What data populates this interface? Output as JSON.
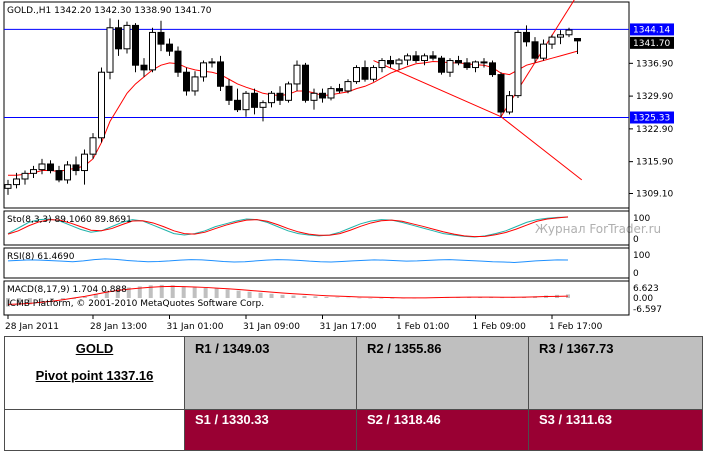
{
  "chart_data": {
    "type": "candlestick",
    "header": "GOLD.,H1  1342.20 1342.30 1338.90 1341.70",
    "symbol": "GOLD.",
    "timeframe": "H1",
    "ohlc_current": {
      "open": 1342.2,
      "high": 1342.3,
      "low": 1338.9,
      "close": 1341.7
    },
    "price_axis_ticks": [
      "1336.90",
      "1329.90",
      "1322.90",
      "1315.90",
      "1309.10"
    ],
    "horizontal_levels": [
      {
        "value": 1344.14,
        "label": "1344.14",
        "color": "#0000ff"
      },
      {
        "value": 1325.33,
        "label": "1325.33",
        "color": "#0000ff"
      }
    ],
    "current_price_label": "1341.70",
    "ylim": [
      1306,
      1350
    ],
    "candles": [
      {
        "o": 1310.2,
        "h": 1312.0,
        "l": 1308.8,
        "c": 1311.0
      },
      {
        "o": 1311.0,
        "h": 1313.5,
        "l": 1310.2,
        "c": 1312.2
      },
      {
        "o": 1312.2,
        "h": 1314.0,
        "l": 1311.0,
        "c": 1313.4
      },
      {
        "o": 1313.4,
        "h": 1315.0,
        "l": 1312.4,
        "c": 1314.2
      },
      {
        "o": 1314.2,
        "h": 1316.5,
        "l": 1313.2,
        "c": 1315.4
      },
      {
        "o": 1315.4,
        "h": 1316.2,
        "l": 1313.4,
        "c": 1314.0
      },
      {
        "o": 1314.0,
        "h": 1315.0,
        "l": 1311.5,
        "c": 1312.0
      },
      {
        "o": 1312.0,
        "h": 1316.0,
        "l": 1311.2,
        "c": 1315.2
      },
      {
        "o": 1315.2,
        "h": 1317.0,
        "l": 1313.0,
        "c": 1314.0
      },
      {
        "o": 1314.0,
        "h": 1318.5,
        "l": 1311.0,
        "c": 1317.5
      },
      {
        "o": 1317.5,
        "h": 1322.0,
        "l": 1316.5,
        "c": 1321.0
      },
      {
        "o": 1321.0,
        "h": 1336.0,
        "l": 1320.0,
        "c": 1335.0
      },
      {
        "o": 1335.0,
        "h": 1346.5,
        "l": 1333.5,
        "c": 1344.5
      },
      {
        "o": 1344.5,
        "h": 1346.2,
        "l": 1338.5,
        "c": 1340.0
      },
      {
        "o": 1340.0,
        "h": 1345.8,
        "l": 1339.0,
        "c": 1345.0
      },
      {
        "o": 1345.0,
        "h": 1345.5,
        "l": 1335.0,
        "c": 1336.5
      },
      {
        "o": 1336.5,
        "h": 1338.0,
        "l": 1334.0,
        "c": 1335.5
      },
      {
        "o": 1335.5,
        "h": 1344.5,
        "l": 1335.0,
        "c": 1343.5
      },
      {
        "o": 1343.5,
        "h": 1346.0,
        "l": 1339.5,
        "c": 1341.0
      },
      {
        "o": 1341.0,
        "h": 1342.2,
        "l": 1338.5,
        "c": 1339.5
      },
      {
        "o": 1339.5,
        "h": 1340.5,
        "l": 1334.0,
        "c": 1335.0
      },
      {
        "o": 1335.0,
        "h": 1336.0,
        "l": 1330.0,
        "c": 1331.0
      },
      {
        "o": 1331.0,
        "h": 1335.2,
        "l": 1330.0,
        "c": 1334.0
      },
      {
        "o": 1334.0,
        "h": 1337.5,
        "l": 1333.0,
        "c": 1337.0
      },
      {
        "o": 1337.0,
        "h": 1338.0,
        "l": 1336.0,
        "c": 1337.2
      },
      {
        "o": 1337.2,
        "h": 1338.5,
        "l": 1331.0,
        "c": 1332.0
      },
      {
        "o": 1332.0,
        "h": 1333.5,
        "l": 1328.0,
        "c": 1329.0
      },
      {
        "o": 1329.0,
        "h": 1331.5,
        "l": 1326.5,
        "c": 1327.0
      },
      {
        "o": 1327.0,
        "h": 1331.0,
        "l": 1325.5,
        "c": 1330.5
      },
      {
        "o": 1330.5,
        "h": 1331.5,
        "l": 1326.0,
        "c": 1327.5
      },
      {
        "o": 1327.5,
        "h": 1329.0,
        "l": 1324.5,
        "c": 1328.5
      },
      {
        "o": 1328.5,
        "h": 1331.0,
        "l": 1327.5,
        "c": 1330.5
      },
      {
        "o": 1330.5,
        "h": 1332.0,
        "l": 1328.0,
        "c": 1329.0
      },
      {
        "o": 1329.0,
        "h": 1333.0,
        "l": 1328.5,
        "c": 1332.5
      },
      {
        "o": 1332.5,
        "h": 1337.5,
        "l": 1331.0,
        "c": 1336.5
      },
      {
        "o": 1336.5,
        "h": 1337.0,
        "l": 1328.5,
        "c": 1329.0
      },
      {
        "o": 1329.0,
        "h": 1331.5,
        "l": 1327.0,
        "c": 1330.5
      },
      {
        "o": 1330.5,
        "h": 1331.5,
        "l": 1328.5,
        "c": 1329.5
      },
      {
        "o": 1329.5,
        "h": 1332.0,
        "l": 1329.0,
        "c": 1331.5
      },
      {
        "o": 1331.5,
        "h": 1332.5,
        "l": 1330.5,
        "c": 1331.0
      },
      {
        "o": 1331.0,
        "h": 1333.5,
        "l": 1330.5,
        "c": 1333.0
      },
      {
        "o": 1333.0,
        "h": 1336.5,
        "l": 1332.5,
        "c": 1336.0
      },
      {
        "o": 1336.0,
        "h": 1337.5,
        "l": 1333.0,
        "c": 1333.5
      },
      {
        "o": 1333.5,
        "h": 1336.5,
        "l": 1333.0,
        "c": 1336.0
      },
      {
        "o": 1336.0,
        "h": 1338.0,
        "l": 1335.0,
        "c": 1337.5
      },
      {
        "o": 1337.5,
        "h": 1338.5,
        "l": 1336.0,
        "c": 1336.8
      },
      {
        "o": 1336.8,
        "h": 1338.0,
        "l": 1335.5,
        "c": 1337.6
      },
      {
        "o": 1337.6,
        "h": 1339.0,
        "l": 1336.5,
        "c": 1338.5
      },
      {
        "o": 1338.5,
        "h": 1339.5,
        "l": 1337.0,
        "c": 1337.5
      },
      {
        "o": 1337.5,
        "h": 1339.0,
        "l": 1336.5,
        "c": 1338.5
      },
      {
        "o": 1338.5,
        "h": 1339.5,
        "l": 1337.5,
        "c": 1338.0
      },
      {
        "o": 1338.0,
        "h": 1338.5,
        "l": 1334.5,
        "c": 1335.0
      },
      {
        "o": 1335.0,
        "h": 1338.0,
        "l": 1334.0,
        "c": 1337.5
      },
      {
        "o": 1337.5,
        "h": 1338.5,
        "l": 1336.5,
        "c": 1337.0
      },
      {
        "o": 1337.0,
        "h": 1338.0,
        "l": 1335.5,
        "c": 1336.0
      },
      {
        "o": 1336.0,
        "h": 1337.5,
        "l": 1335.0,
        "c": 1337.2
      },
      {
        "o": 1337.2,
        "h": 1338.0,
        "l": 1336.0,
        "c": 1337.0
      },
      {
        "o": 1337.0,
        "h": 1337.5,
        "l": 1334.0,
        "c": 1334.5
      },
      {
        "o": 1334.5,
        "h": 1335.0,
        "l": 1325.5,
        "c": 1326.5
      },
      {
        "o": 1326.5,
        "h": 1331.0,
        "l": 1326.0,
        "c": 1330.0
      },
      {
        "o": 1330.0,
        "h": 1344.0,
        "l": 1329.5,
        "c": 1343.5
      },
      {
        "o": 1343.5,
        "h": 1345.0,
        "l": 1340.5,
        "c": 1341.5
      },
      {
        "o": 1341.5,
        "h": 1342.5,
        "l": 1337.0,
        "c": 1338.0
      },
      {
        "o": 1338.0,
        "h": 1342.0,
        "l": 1337.5,
        "c": 1341.0
      },
      {
        "o": 1341.0,
        "h": 1343.0,
        "l": 1340.0,
        "c": 1342.5
      },
      {
        "o": 1342.5,
        "h": 1344.0,
        "l": 1341.0,
        "c": 1343.0
      },
      {
        "o": 1343.0,
        "h": 1344.5,
        "l": 1342.5,
        "c": 1344.0
      },
      {
        "o": 1342.2,
        "h": 1342.3,
        "l": 1338.9,
        "c": 1341.7
      }
    ],
    "moving_average": [
      1313.0,
      1313.0,
      1313.2,
      1313.5,
      1314.0,
      1314.0,
      1313.8,
      1314.2,
      1314.5,
      1315.0,
      1316.5,
      1320.0,
      1324.5,
      1327.5,
      1330.5,
      1332.5,
      1334.0,
      1335.5,
      1336.5,
      1337.0,
      1336.8,
      1336.0,
      1335.5,
      1335.2,
      1335.0,
      1334.5,
      1333.5,
      1332.5,
      1331.8,
      1331.2,
      1330.5,
      1330.2,
      1330.0,
      1330.3,
      1331.0,
      1331.0,
      1330.6,
      1330.0,
      1330.2,
      1330.5,
      1330.8,
      1331.5,
      1332.0,
      1332.8,
      1333.8,
      1334.8,
      1335.5,
      1336.2,
      1336.8,
      1337.0,
      1337.3,
      1337.2,
      1337.0,
      1337.0,
      1336.8,
      1336.6,
      1336.5,
      1336.0,
      1334.8,
      1334.5,
      1335.5,
      1336.5,
      1337.0,
      1337.5,
      1338.0,
      1338.5,
      1339.0,
      1339.5
    ],
    "trendlines": [
      {
        "from": [
          43,
          1337.5
        ],
        "to": [
          58,
          1325.5
        ]
      },
      {
        "from": [
          58,
          1325.5
        ],
        "to": [
          67.5,
          1312.0
        ]
      },
      {
        "from": [
          58,
          1325.5
        ],
        "to": [
          67.5,
          1353.0
        ]
      }
    ],
    "x_tick_labels": [
      "28 Jan 2011",
      "28 Jan 13:00",
      "31 Jan 01:00",
      "31 Jan 09:00",
      "31 Jan 17:00",
      "1 Feb 01:00",
      "1 Feb 09:00",
      "1 Feb 17:00"
    ],
    "x_tick_index": [
      0,
      10,
      19,
      28,
      37,
      46,
      55,
      64
    ],
    "watermark": "Журнал ForTrader.ru",
    "stochastic": {
      "label": "Sto(8,3,3) 89.1060 89.8691",
      "ticks": [
        "100",
        "0"
      ],
      "main": [
        30,
        50,
        70,
        80,
        82,
        75,
        60,
        45,
        35,
        40,
        55,
        70,
        80,
        75,
        60,
        45,
        30,
        25,
        30,
        40,
        55,
        65,
        75,
        82,
        80,
        70,
        55,
        40,
        30,
        25,
        22,
        25,
        35,
        50,
        65,
        75,
        80,
        78,
        70,
        60,
        50,
        40,
        30,
        25,
        20,
        18,
        22,
        30,
        40,
        55,
        70,
        80,
        85,
        88,
        89
      ],
      "signal": [
        28,
        40,
        58,
        72,
        80,
        78,
        68,
        55,
        42,
        40,
        48,
        62,
        75,
        76,
        68,
        55,
        40,
        30,
        28,
        35,
        48,
        60,
        70,
        78,
        80,
        74,
        62,
        48,
        36,
        28,
        24,
        24,
        30,
        42,
        56,
        68,
        76,
        78,
        74,
        65,
        56,
        46,
        36,
        28,
        22,
        19,
        20,
        26,
        34,
        46,
        60,
        74,
        82,
        86,
        89.9
      ]
    },
    "rsi": {
      "label": "RSI(8) 61.4690",
      "ticks": [
        "100",
        "0"
      ],
      "values": [
        58,
        60,
        62,
        61,
        59,
        57,
        55,
        58,
        63,
        66,
        64,
        60,
        57,
        55,
        56,
        58,
        61,
        63,
        62,
        59,
        56,
        54,
        55,
        58,
        61,
        63,
        62,
        60,
        57,
        55,
        54,
        56,
        58,
        60,
        62,
        61,
        59,
        57,
        58,
        60,
        62,
        63,
        61,
        59,
        57,
        55,
        54,
        52,
        55,
        58,
        60,
        62,
        61.5
      ]
    },
    "macd": {
      "label": "MACD(8,17,9) 1.704 0.888",
      "ticks": [
        "6.623",
        "0.00",
        "-6.597"
      ],
      "histogram": [
        -4,
        -3.5,
        -3,
        -2.5,
        -1.8,
        -1,
        -0.5,
        0.5,
        2,
        3.5,
        4.5,
        5,
        5.5,
        6,
        6.2,
        6,
        5.5,
        5,
        4.8,
        4.5,
        4,
        3.5,
        3,
        2.5,
        2,
        1.5,
        1.2,
        1,
        0.8,
        0.5,
        0.3,
        0.2,
        0.1,
        0,
        -0.2,
        -0.3,
        -0.2,
        0,
        0.2,
        0.3,
        0.4,
        0.5,
        0.5,
        0.4,
        0.3,
        0.2,
        0.3,
        0.5,
        0.8,
        1.2,
        1.5,
        1.7
      ],
      "signal": [
        -3,
        -2.8,
        -2.5,
        -2,
        -1.5,
        -0.8,
        0,
        0.8,
        1.8,
        2.8,
        3.6,
        4.2,
        4.7,
        5.1,
        5.4,
        5.5,
        5.4,
        5.2,
        5,
        4.7,
        4.4,
        4,
        3.6,
        3.2,
        2.8,
        2.4,
        2,
        1.7,
        1.4,
        1.1,
        0.9,
        0.7,
        0.5,
        0.4,
        0.3,
        0.2,
        0.1,
        0.1,
        0.1,
        0.2,
        0.3,
        0.35,
        0.4,
        0.42,
        0.4,
        0.38,
        0.38,
        0.45,
        0.55,
        0.7,
        0.8,
        0.888
      ]
    },
    "copyright": "ICMB Platform, © 2001-2010 MetaQuotes Software Corp."
  },
  "pivot_table": {
    "symbol": "GOLD",
    "pivot_label": "Pivot point 1337.16",
    "resistances": [
      "R1 / 1349.03",
      "R2 / 1355.86",
      "R3 / 1367.73"
    ],
    "supports": [
      "S1 / 1330.33",
      "S2 / 1318.46",
      "S3 / 1311.63"
    ]
  },
  "colors": {
    "bull": "#ffffff",
    "bear": "#000000",
    "ma": "#ff0000",
    "level": "#0000ff",
    "support_row": "#990033",
    "resistance_row": "#bfbfbf"
  }
}
